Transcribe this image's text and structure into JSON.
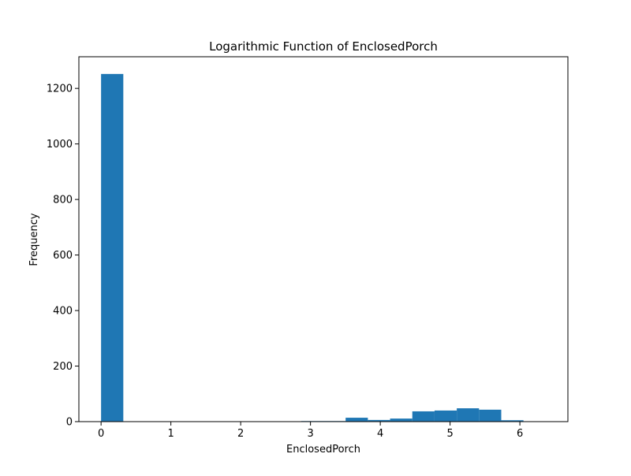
{
  "chart_data": {
    "type": "bar",
    "title": "Logarithmic Function of EnclosedPorch",
    "xlabel": "EnclosedPorch",
    "ylabel": "Frequency",
    "xlim": [
      -0.318,
      6.688
    ],
    "ylim": [
      0,
      1314
    ],
    "x_ticks": [
      0,
      1,
      2,
      3,
      4,
      5,
      6
    ],
    "y_ticks": [
      0,
      200,
      400,
      600,
      800,
      1000,
      1200
    ],
    "bin_edges": [
      0,
      0.3185,
      0.637,
      0.9555,
      1.274,
      1.5925,
      1.911,
      2.2295,
      2.548,
      2.8665,
      3.185,
      3.5035,
      3.822,
      4.1405,
      4.459,
      4.7775,
      5.096,
      5.4145,
      5.733,
      6.0515,
      6.37
    ],
    "values": [
      1252,
      0,
      0,
      0,
      0,
      0,
      0,
      0,
      0,
      2,
      2,
      14,
      6,
      11,
      37,
      40,
      48,
      43,
      5,
      0
    ],
    "bar_color": "#1f77b4",
    "grid": false
  }
}
